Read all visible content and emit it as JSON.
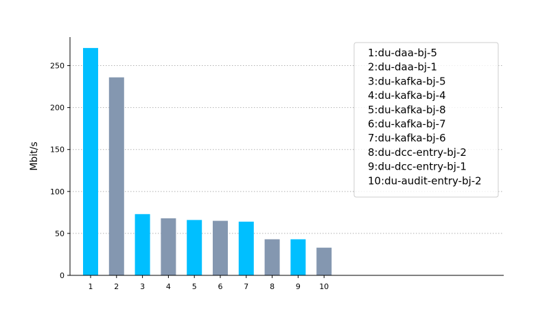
{
  "chart_data": {
    "type": "bar",
    "title": "",
    "xlabel": "",
    "ylabel": "Mbit/s",
    "categories": [
      "1",
      "2",
      "3",
      "4",
      "5",
      "6",
      "7",
      "8",
      "9",
      "10"
    ],
    "values": [
      271,
      236,
      73,
      68,
      66,
      65,
      64,
      43,
      43,
      33
    ],
    "ylim": [
      0,
      284
    ],
    "yticks": [
      0,
      50,
      100,
      150,
      200,
      250
    ],
    "grid": {
      "y": true,
      "style": "dotted"
    },
    "bar_colors": [
      "#00bfff",
      "#8497b0"
    ],
    "legend": {
      "placement": "top-right",
      "entries": [
        "1:du-daa-bj-5",
        "2:du-daa-bj-1",
        "3:du-kafka-bj-5",
        "4:du-kafka-bj-4",
        "5:du-kafka-bj-8",
        "6:du-kafka-bj-7",
        "7:du-kafka-bj-6",
        "8:du-dcc-entry-bj-2",
        "9:du-dcc-entry-bj-1",
        "10:du-audit-entry-bj-2"
      ]
    }
  }
}
